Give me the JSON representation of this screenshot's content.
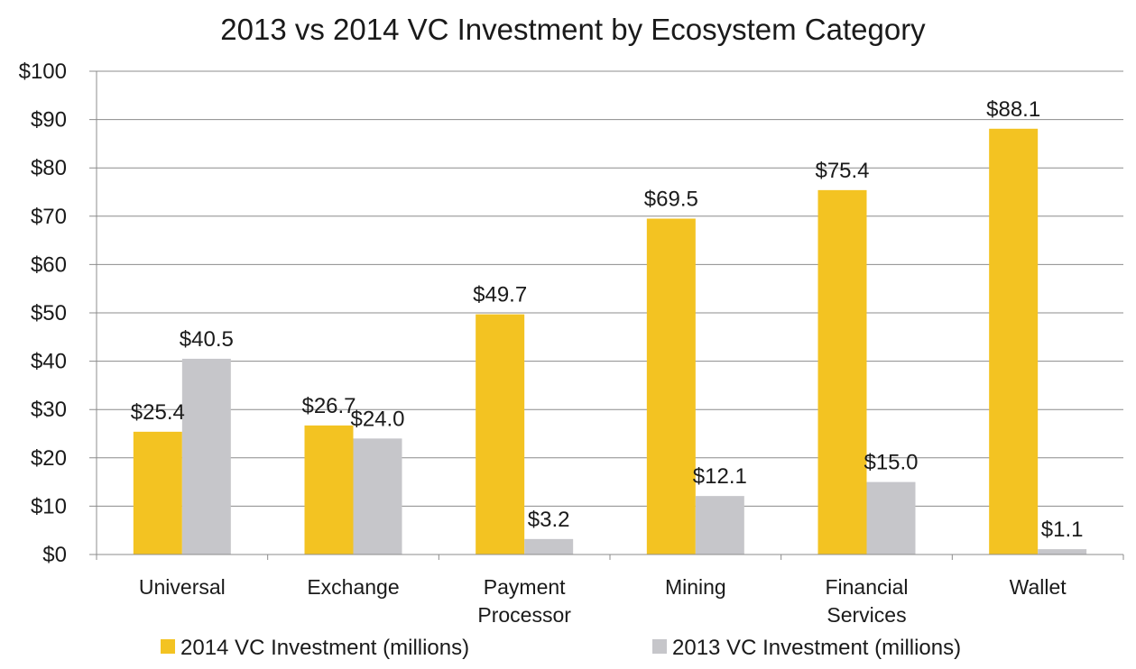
{
  "chart_data": {
    "type": "bar",
    "title": "2013 vs 2014 VC Investment by Ecosystem Category",
    "categories": [
      [
        "Universal"
      ],
      [
        "Exchange"
      ],
      [
        "Payment",
        "Processor"
      ],
      [
        "Mining"
      ],
      [
        "Financial",
        "Services"
      ],
      [
        "Wallet"
      ]
    ],
    "series": [
      {
        "name": "2014 VC Investment (millions)",
        "color": "#f3c322",
        "values": [
          25.4,
          26.7,
          49.7,
          69.5,
          75.4,
          88.1
        ],
        "labels": [
          "$25.4",
          "$26.7",
          "$49.7",
          "$69.5",
          "$75.4",
          "$88.1"
        ]
      },
      {
        "name": "2013 VC Investment (millions)",
        "color": "#c6c6ca",
        "values": [
          40.5,
          24.0,
          3.2,
          12.1,
          15.0,
          1.1
        ],
        "labels": [
          "$40.5",
          "$24.0",
          "$3.2",
          "$12.1",
          "$15.0",
          "$1.1"
        ]
      }
    ],
    "y_ticks": [
      0,
      10,
      20,
      30,
      40,
      50,
      60,
      70,
      80,
      90,
      100
    ],
    "y_tick_labels": [
      "$0",
      "$10",
      "$20",
      "$30",
      "$40",
      "$50",
      "$60",
      "$70",
      "$80",
      "$90",
      "$100"
    ],
    "ylim": [
      0,
      100
    ],
    "xlabel": "",
    "ylabel": "",
    "grid": true,
    "legend_position": "bottom"
  }
}
